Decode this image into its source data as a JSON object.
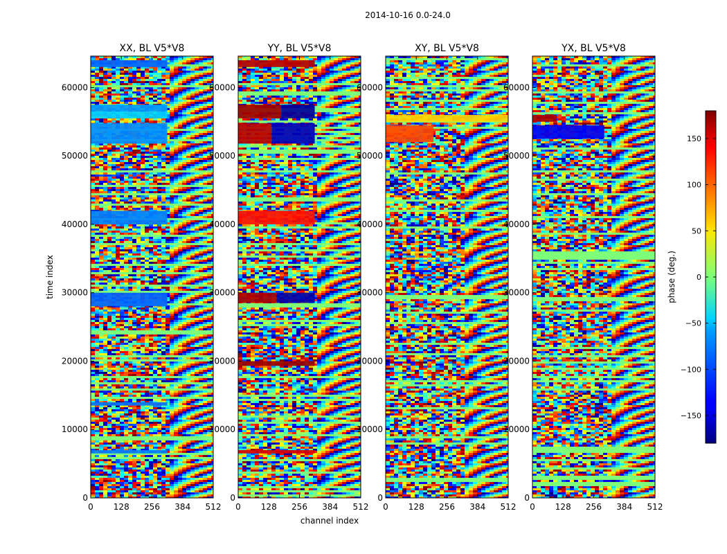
{
  "figure": {
    "suptitle": "2014-10-16 0.0-24.0",
    "xlabel": "channel index",
    "ylabel": "time index"
  },
  "chart_data": {
    "type": "heatmap",
    "colormap": "jet",
    "x_range": [
      0,
      512
    ],
    "y_range": [
      0,
      64600
    ],
    "x_ticks": [
      0,
      128,
      256,
      384,
      512
    ],
    "y_ticks": [
      0,
      10000,
      20000,
      30000,
      40000,
      50000,
      60000
    ],
    "colorbar": {
      "label": "phase (deg.)",
      "range": [
        -180,
        180
      ],
      "ticks": [
        150,
        100,
        50,
        0,
        -50,
        -100,
        -150
      ],
      "tick_labels": [
        "150",
        "100",
        "50",
        "0",
        "−50",
        "−100",
        "−150"
      ]
    },
    "panels": [
      {
        "title": "XX, BL V5*V8",
        "description": "Phase of XX correlation; mostly noisy wideband with coherent cyan/blue low-channel bands (channels 0-320) at several time ranges, oscillating fringes above channel ~320.",
        "bands": [
          {
            "t": [
              63000,
              64000
            ],
            "ch": [
              0,
              320
            ],
            "phase": -100
          },
          {
            "t": [
              57500,
              56500
            ],
            "ch": [
              0,
              320
            ],
            "phase": -80
          },
          {
            "t": [
              56500,
              55500
            ],
            "ch": [
              0,
              320
            ],
            "phase": -60
          },
          {
            "t": [
              54800,
              51800
            ],
            "ch": [
              0,
              320
            ],
            "phase": -85
          },
          {
            "t": [
              42000,
              40000
            ],
            "ch": [
              0,
              320
            ],
            "phase": -90
          },
          {
            "t": [
              30000,
              28000
            ],
            "ch": [
              0,
              320
            ],
            "phase": -100
          },
          {
            "t": [
              7000,
              6500
            ],
            "ch": [
              0,
              320
            ],
            "phase": -90
          },
          {
            "t": [
              14000,
              13500
            ],
            "ch": [
              0,
              320
            ],
            "phase": -95
          }
        ]
      },
      {
        "title": "YY, BL V5*V8",
        "description": "Phase of YY correlation; strong red/dark-red and blue coherent bands in low channels (0-320) near 55000, 41000, 29500, 20000, 7000, fringes above channel ~320.",
        "bands": [
          {
            "t": [
              64000,
              63000
            ],
            "ch": [
              0,
              320
            ],
            "phase": 160
          },
          {
            "t": [
              57500,
              55500
            ],
            "ch": [
              0,
              180
            ],
            "phase": 170
          },
          {
            "t": [
              57500,
              55500
            ],
            "ch": [
              180,
              320
            ],
            "phase": -170
          },
          {
            "t": [
              54800,
              51800
            ],
            "ch": [
              0,
              140
            ],
            "phase": 160
          },
          {
            "t": [
              54800,
              51800
            ],
            "ch": [
              140,
              320
            ],
            "phase": -160
          },
          {
            "t": [
              42000,
              40000
            ],
            "ch": [
              0,
              320
            ],
            "phase": 130
          },
          {
            "t": [
              30000,
              28500
            ],
            "ch": [
              0,
              160
            ],
            "phase": 165
          },
          {
            "t": [
              30000,
              28500
            ],
            "ch": [
              160,
              320
            ],
            "phase": -165
          },
          {
            "t": [
              20000,
              19300
            ],
            "ch": [
              0,
              320
            ],
            "phase": 170
          },
          {
            "t": [
              7000,
              6500
            ],
            "ch": [
              0,
              320
            ],
            "phase": 150
          }
        ]
      },
      {
        "title": "XY, BL V5*V8",
        "description": "Phase of XY cross-polarization; mostly noise with an orange/yellow band near 55500 and red/yellow patches near 52000-55000.",
        "bands": [
          {
            "t": [
              56000,
              55000
            ],
            "ch": [
              0,
              512
            ],
            "phase": 60
          },
          {
            "t": [
              54500,
              52000
            ],
            "ch": [
              0,
              200
            ],
            "phase": 110
          }
        ]
      },
      {
        "title": "YX, BL V5*V8",
        "description": "Phase of YX cross-polarization; mostly noise with a dark red band near 55500 and blue patches near 52000-55000.",
        "bands": [
          {
            "t": [
              56000,
              55000
            ],
            "ch": [
              0,
              100
            ],
            "phase": 165
          },
          {
            "t": [
              54500,
              52500
            ],
            "ch": [
              0,
              300
            ],
            "phase": -140
          }
        ]
      }
    ]
  }
}
